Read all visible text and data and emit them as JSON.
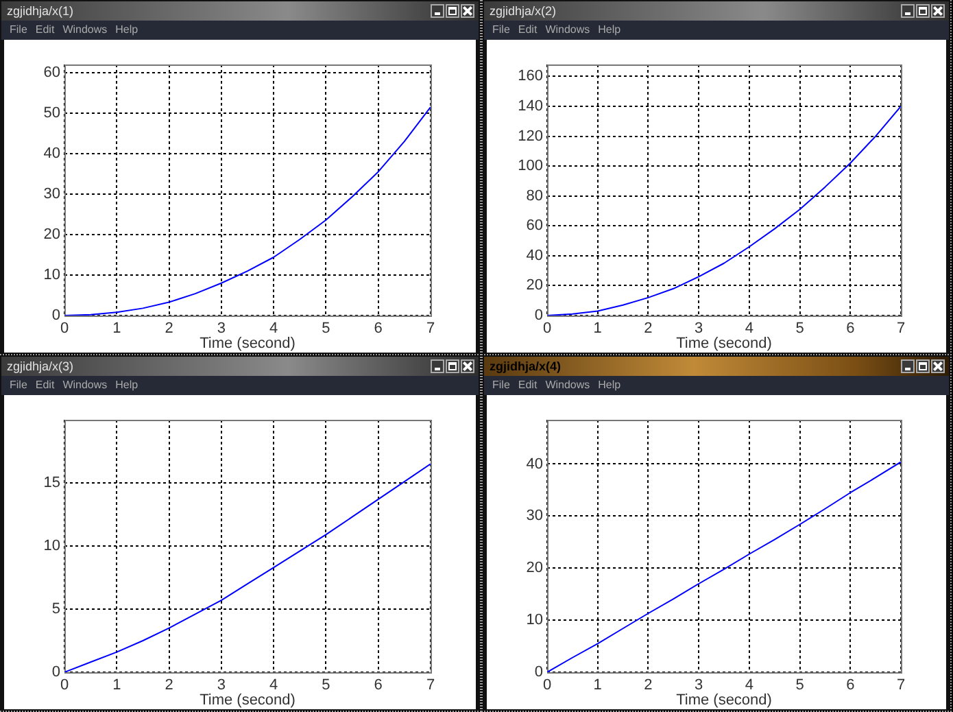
{
  "chart_data": [
    {
      "type": "line",
      "title": "zgjidhja/x(1)",
      "annotations": [
        "File",
        "Edit",
        "Windows",
        "Help"
      ],
      "xlabel": "Time (second)",
      "x": [
        0,
        0.5,
        1,
        1.5,
        2,
        2.5,
        3,
        3.5,
        4,
        4.5,
        5,
        5.5,
        6,
        6.5,
        7
      ],
      "values": [
        0,
        0.2,
        0.8,
        1.8,
        3.3,
        5.4,
        8,
        11,
        14.4,
        18.8,
        23.6,
        29.3,
        35.5,
        43,
        51.5
      ],
      "color": "#0000ff",
      "xlim": [
        0,
        7
      ],
      "xticks": [
        0,
        1,
        2,
        3,
        4,
        5,
        6,
        7
      ],
      "ylim": [
        0,
        62
      ],
      "yticks": [
        0,
        10,
        20,
        30,
        40,
        50,
        60
      ],
      "grid": true
    },
    {
      "type": "line",
      "title": "zgjidhja/x(2)",
      "annotations": [
        "File",
        "Edit",
        "Windows",
        "Help"
      ],
      "xlabel": "Time (second)",
      "x": [
        0,
        0.5,
        1,
        1.5,
        2,
        2.5,
        3,
        3.5,
        4,
        4.5,
        5,
        5.5,
        6,
        6.5,
        7
      ],
      "values": [
        0,
        1,
        3,
        7,
        12,
        18,
        26,
        35,
        46,
        58,
        71,
        86,
        102,
        120,
        140
      ],
      "color": "#0000ff",
      "xlim": [
        0,
        7
      ],
      "xticks": [
        0,
        1,
        2,
        3,
        4,
        5,
        6,
        7
      ],
      "ylim": [
        0,
        168
      ],
      "yticks": [
        0,
        20,
        40,
        60,
        80,
        100,
        120,
        140,
        160
      ],
      "grid": true
    },
    {
      "type": "line",
      "title": "zgjidhja/x(3)",
      "annotations": [
        "File",
        "Edit",
        "Windows",
        "Help"
      ],
      "xlabel": "Time (second)",
      "x": [
        0,
        0.5,
        1,
        1.5,
        2,
        2.5,
        3,
        3.5,
        4,
        4.5,
        5,
        5.5,
        6,
        6.5,
        7
      ],
      "values": [
        0,
        0.8,
        1.6,
        2.5,
        3.5,
        4.6,
        5.7,
        7,
        8.3,
        9.6,
        10.9,
        12.3,
        13.7,
        15.1,
        16.5
      ],
      "color": "#0000ff",
      "xlim": [
        0,
        7
      ],
      "xticks": [
        0,
        1,
        2,
        3,
        4,
        5,
        6,
        7
      ],
      "ylim": [
        0,
        20
      ],
      "yticks": [
        0,
        5,
        10,
        15
      ],
      "grid": true
    },
    {
      "type": "line",
      "title": "zgjidhja/x(4)",
      "annotations": [
        "File",
        "Edit",
        "Windows",
        "Help"
      ],
      "xlabel": "Time (second)",
      "x": [
        0,
        0.5,
        1,
        1.5,
        2,
        2.5,
        3,
        3.5,
        4,
        4.5,
        5,
        5.5,
        6,
        6.5,
        7
      ],
      "values": [
        0,
        2.8,
        5.5,
        8.4,
        11.3,
        14.1,
        17,
        19.8,
        22.7,
        25.5,
        28.4,
        31.4,
        34.5,
        37.4,
        40.4
      ],
      "color": "#0000ff",
      "xlim": [
        0,
        7
      ],
      "xticks": [
        0,
        1,
        2,
        3,
        4,
        5,
        6,
        7
      ],
      "ylim": [
        0,
        48.5
      ],
      "yticks": [
        0,
        10,
        20,
        30,
        40
      ],
      "grid": true
    }
  ]
}
